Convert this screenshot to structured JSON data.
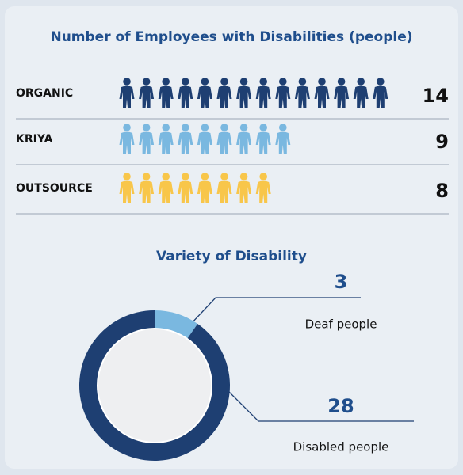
{
  "chart_data": [
    {
      "type": "pictogram",
      "title": "Number of Employees with Disabilities (people)",
      "categories": [
        "ORGANIC",
        "KRIYA",
        "OUTSOURCE"
      ],
      "values": [
        14,
        9,
        8
      ],
      "colors": [
        "#1e3f72",
        "#7ab8e0",
        "#f8c64a"
      ]
    },
    {
      "type": "donut",
      "title": "Variety of Disability",
      "categories": [
        "Deaf people",
        "Disabled people"
      ],
      "values": [
        3,
        28
      ],
      "colors": [
        "#7ab8e0",
        "#1e3f72"
      ]
    }
  ]
}
